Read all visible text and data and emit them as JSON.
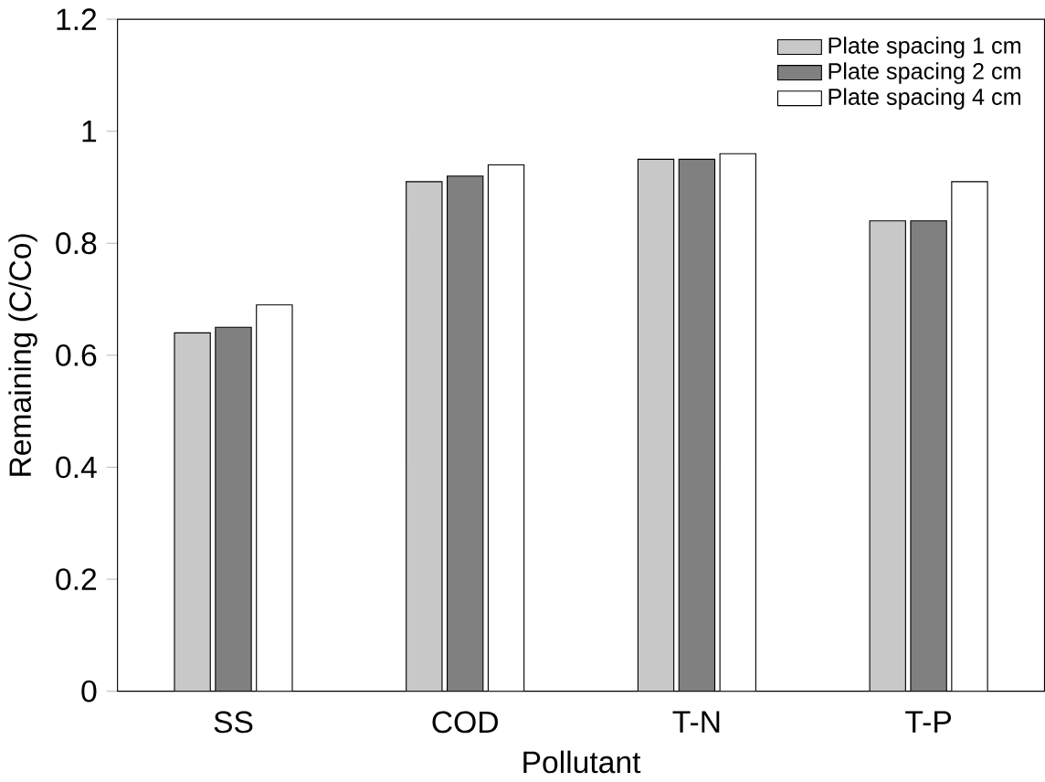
{
  "chart_data": {
    "type": "bar",
    "xlabel": "Pollutant",
    "ylabel": "Remaining (C/Co)",
    "categories": [
      "SS",
      "COD",
      "T-N",
      "T-P"
    ],
    "series": [
      {
        "name": "Plate spacing 1 cm",
        "color": "#c8c8c8",
        "values": [
          0.64,
          0.91,
          0.95,
          0.84
        ]
      },
      {
        "name": "Plate spacing 2 cm",
        "color": "#808080",
        "values": [
          0.65,
          0.92,
          0.95,
          0.84
        ]
      },
      {
        "name": "Plate spacing 4 cm",
        "color": "#ffffff",
        "values": [
          0.69,
          0.94,
          0.96,
          0.91
        ]
      }
    ],
    "ylim": [
      0,
      1.2
    ],
    "yticks": [
      0,
      0.2,
      0.4,
      0.6,
      0.8,
      1,
      1.2
    ],
    "legend": "top right",
    "grid": false
  }
}
